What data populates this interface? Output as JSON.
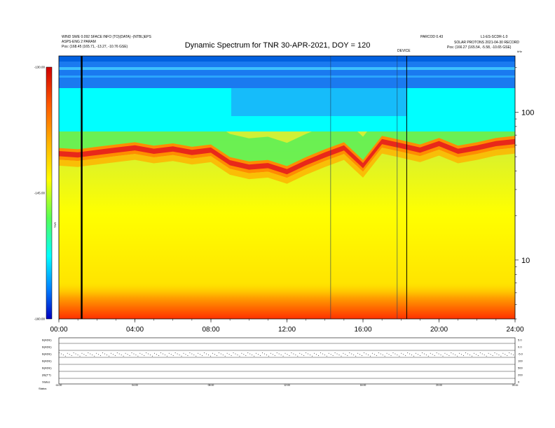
{
  "header": {
    "left_line1": "WIND SWE 0.092 SFACE INFO (TO)(DATA) -(NTBL)EPS",
    "left_line2": "ASPS-ENG 2 PARAM",
    "left_line3": "Pos:  (168.45 (165.71, -13.27, -10.76 GSE)",
    "right_top": "PARCOD 0.43",
    "right_top2": "L1-ES-SCDR-1.0",
    "right_line2": "SOLAR PROTONS 2021-04-30 RECORD",
    "right_line3": "Pos:   (166.27 (165.54, -5.58, -10.65 GSE)",
    "marker_label": "DEVICE"
  },
  "chart_data": {
    "type": "heatmap",
    "title": "Dynamic Spectrum for TNR 30-APR-2021, DOY = 120",
    "x": {
      "ticks": [
        "00:00",
        "04:00",
        "08:00",
        "12:00",
        "16:00",
        "20:00",
        "24:00"
      ],
      "range_hours": [
        0,
        24
      ]
    },
    "y_right": {
      "scale": "log",
      "ticks": [
        10,
        100
      ],
      "range_khz": [
        4,
        240
      ],
      "label": "kHz"
    },
    "colorbar": {
      "ticks": [
        "-130.00",
        "-145.00",
        "-160.00"
      ],
      "label": "TNR",
      "range": [
        -160,
        -130
      ]
    },
    "spectral_features": {
      "band_center_khz": [
        [
          0.0,
          53
        ],
        [
          1.0,
          52
        ],
        [
          2.0,
          54
        ],
        [
          3.0,
          56
        ],
        [
          4.0,
          58
        ],
        [
          5.0,
          55
        ],
        [
          6.0,
          57
        ],
        [
          7.0,
          54
        ],
        [
          8.0,
          56
        ],
        [
          9.0,
          46
        ],
        [
          10.0,
          43
        ],
        [
          11.0,
          44
        ],
        [
          12.0,
          40
        ],
        [
          13.0,
          46
        ],
        [
          14.0,
          52
        ],
        [
          15.0,
          58
        ],
        [
          16.0,
          44
        ],
        [
          17.0,
          64
        ],
        [
          18.0,
          60
        ],
        [
          19.0,
          56
        ],
        [
          20.0,
          62
        ],
        [
          21.0,
          55
        ],
        [
          22.0,
          58
        ],
        [
          23.0,
          62
        ],
        [
          24.0,
          64
        ]
      ],
      "green_edge_khz": 80,
      "blue_edge_khz": 110,
      "vertical_marker_hours": [
        1.2,
        18.3,
        14.3,
        17.8
      ]
    },
    "lower_panel": {
      "rows": [
        {
          "label": "B(ADE)",
          "right": "5.0"
        },
        {
          "label": "B(ADE)",
          "right": "0.0"
        },
        {
          "label": "B(ADE)",
          "right": "-5.0"
        },
        {
          "label": "B(ADE)",
          "right": "100"
        },
        {
          "label": "B(ADE)",
          "right": "500"
        },
        {
          "label": "(B)(TT)",
          "right": "200"
        },
        {
          "label": "Status",
          "right": "0"
        }
      ],
      "x_ticks": [
        "00:00",
        "04:00",
        "08:00",
        "12:00",
        "16:00",
        "20:00",
        "24:00"
      ],
      "status_label": "Status"
    }
  }
}
